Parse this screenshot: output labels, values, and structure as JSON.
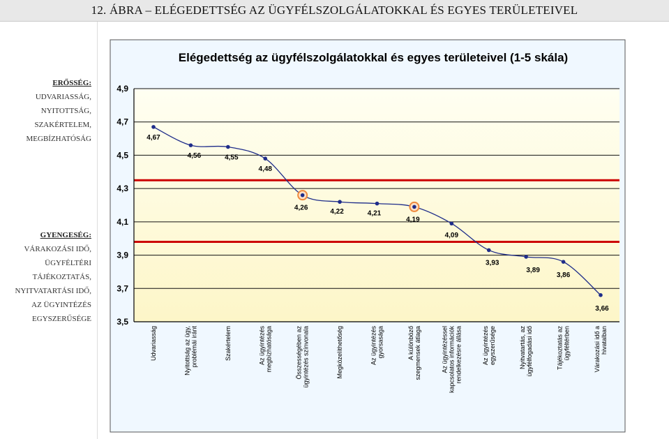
{
  "page": {
    "title": "12. ÁBRA – ELÉGEDETTSÉG AZ ÜGYFÉLSZOLGÁLATOKKAL ÉS EGYES TERÜLETEIVEL"
  },
  "left_panel": {
    "strength": {
      "heading": "ERŐSSÉG:",
      "items": [
        "UDVARIASSÁG,",
        "NYITOTTSÁG,",
        "SZAKÉRTELEM,",
        "MEGBÍZHATÓSÁG"
      ]
    },
    "weakness": {
      "heading": "GYENGESÉG:",
      "items": [
        "VÁRAKOZÁSI IDŐ,",
        "ÜGYFÉLTÉRI",
        "TÁJÉKOZTATÁS,",
        "NYITVATARTÁSI IDŐ,",
        "AZ ÜGYINTÉZÉS",
        "EGYSZERŰSÉGE"
      ]
    }
  },
  "chart_data": {
    "type": "line",
    "title": "Elégedettség az ügyfélszolgálatokkal és egyes területeivel (1-5 skála)",
    "xlabel": "",
    "ylabel": "",
    "ylim": [
      3.5,
      4.9
    ],
    "yticks": [
      "4,9",
      "4,7",
      "4,5",
      "4,3",
      "4,1",
      "3,9",
      "3,7",
      "3,5"
    ],
    "ytick_values": [
      4.9,
      4.7,
      4.5,
      4.3,
      4.1,
      3.9,
      3.7,
      3.5
    ],
    "grid": true,
    "categories": [
      [
        "Udvariasság"
      ],
      [
        "Nyitottság az ügy,",
        "problémái iránt"
      ],
      [
        "Szakértelem"
      ],
      [
        "Az ügyintézés",
        "megbízhatósága"
      ],
      [
        "Összességében az",
        "ügyintézés színvonala"
      ],
      [
        "Megközelíthetőség"
      ],
      [
        "Az ügyintézés",
        "gyorsasága"
      ],
      [
        "A különböző",
        "szegmensek átlaga"
      ],
      [
        "Az ügyintézéssel",
        "kapcsolatos információk",
        "rendelkezésre állása"
      ],
      [
        "Az ügyintézés",
        "egyszerűsége"
      ],
      [
        "Nyitvatartás, az",
        "ügyfélfogadási idő"
      ],
      [
        "Tájékoztatás az",
        "ügyféltérben"
      ],
      [
        "Várakozási idő a",
        "hivatalban"
      ]
    ],
    "values": [
      4.67,
      4.56,
      4.55,
      4.48,
      4.26,
      4.22,
      4.21,
      4.19,
      4.09,
      3.93,
      3.89,
      3.86,
      3.66
    ],
    "value_labels": [
      "4,67",
      "4,56",
      "4,55",
      "4,48",
      "4,26",
      "4,22",
      "4,21",
      "4,19",
      "4,09",
      "3,93",
      "3,89",
      "3,86",
      "3,66"
    ],
    "highlighted_points": [
      4,
      7
    ],
    "reference_lines": [
      4.35,
      3.98
    ],
    "colors": {
      "line": "#1f2d8a",
      "marker": "#1f2d8a",
      "reference": "#cc0000",
      "highlight_ring": "#f08a3c",
      "plot_bg_top": "#fffff2",
      "plot_bg_bottom": "#fdf6c8",
      "outer_bg": "#f0f8ff"
    }
  }
}
